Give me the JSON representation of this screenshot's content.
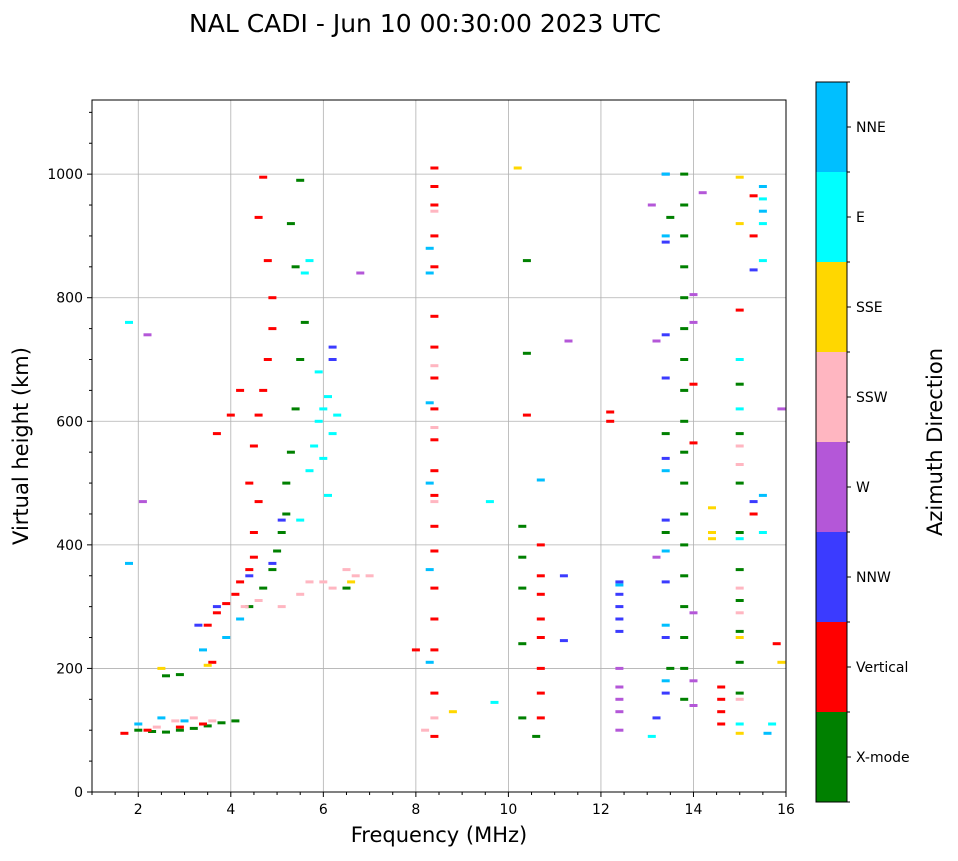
{
  "chart_data": {
    "type": "scatter",
    "title": "NAL CADI - Jun 10 00:30:00 2023 UTC",
    "xlabel": "Frequency (MHz)",
    "ylabel": "Virtual height (km)",
    "xlim": [
      1,
      16
    ],
    "ylim": [
      0,
      1120
    ],
    "xticks": [
      2,
      4,
      6,
      8,
      10,
      12,
      14,
      16
    ],
    "yticks": [
      0,
      200,
      400,
      600,
      800,
      1000
    ],
    "grid": true,
    "colorbar": {
      "label": "Azimuth Direction",
      "placement": "right",
      "categories": [
        {
          "name": "X-mode",
          "color": "#008000"
        },
        {
          "name": "Vertical",
          "color": "#ff0000"
        },
        {
          "name": "NNW",
          "color": "#3b3bff"
        },
        {
          "name": "W",
          "color": "#b457d8"
        },
        {
          "name": "SSW",
          "color": "#ffb6c1"
        },
        {
          "name": "SSE",
          "color": "#ffd700"
        },
        {
          "name": "E",
          "color": "#00ffff"
        },
        {
          "name": "NNE",
          "color": "#00bfff"
        }
      ]
    },
    "series": [
      {
        "name": "X-mode",
        "points": [
          [
            2.0,
            100
          ],
          [
            2.3,
            98
          ],
          [
            2.6,
            97
          ],
          [
            2.9,
            100
          ],
          [
            3.2,
            103
          ],
          [
            3.5,
            107
          ],
          [
            3.8,
            112
          ],
          [
            4.1,
            115
          ],
          [
            2.6,
            188
          ],
          [
            2.9,
            190
          ],
          [
            4.4,
            300
          ],
          [
            4.7,
            330
          ],
          [
            4.9,
            360
          ],
          [
            5.0,
            390
          ],
          [
            5.1,
            420
          ],
          [
            5.2,
            450
          ],
          [
            5.2,
            500
          ],
          [
            5.3,
            550
          ],
          [
            5.4,
            620
          ],
          [
            5.5,
            700
          ],
          [
            5.6,
            760
          ],
          [
            5.4,
            850
          ],
          [
            5.3,
            920
          ],
          [
            5.5,
            990
          ],
          [
            6.5,
            330
          ],
          [
            10.3,
            430
          ],
          [
            10.3,
            380
          ],
          [
            10.3,
            330
          ],
          [
            10.3,
            240
          ],
          [
            10.3,
            120
          ],
          [
            10.6,
            90
          ],
          [
            10.4,
            710
          ],
          [
            10.4,
            860
          ],
          [
            13.5,
            930
          ],
          [
            13.4,
            580
          ],
          [
            13.4,
            420
          ],
          [
            13.5,
            200
          ],
          [
            13.8,
            1000
          ],
          [
            13.8,
            950
          ],
          [
            13.8,
            900
          ],
          [
            13.8,
            850
          ],
          [
            13.8,
            800
          ],
          [
            13.8,
            750
          ],
          [
            13.8,
            700
          ],
          [
            13.8,
            650
          ],
          [
            13.8,
            600
          ],
          [
            13.8,
            550
          ],
          [
            13.8,
            500
          ],
          [
            13.8,
            450
          ],
          [
            13.8,
            400
          ],
          [
            13.8,
            350
          ],
          [
            13.8,
            300
          ],
          [
            13.8,
            250
          ],
          [
            13.8,
            200
          ],
          [
            13.8,
            150
          ],
          [
            15.0,
            660
          ],
          [
            15.0,
            580
          ],
          [
            15.0,
            500
          ],
          [
            15.0,
            420
          ],
          [
            15.0,
            360
          ],
          [
            15.0,
            310
          ],
          [
            15.0,
            260
          ],
          [
            15.0,
            210
          ],
          [
            15.0,
            160
          ]
        ]
      },
      {
        "name": "Vertical",
        "points": [
          [
            1.7,
            95
          ],
          [
            2.2,
            100
          ],
          [
            2.9,
            105
          ],
          [
            3.4,
            110
          ],
          [
            3.6,
            210
          ],
          [
            3.5,
            270
          ],
          [
            3.7,
            290
          ],
          [
            3.9,
            305
          ],
          [
            4.1,
            320
          ],
          [
            4.2,
            340
          ],
          [
            4.4,
            360
          ],
          [
            4.5,
            380
          ],
          [
            4.5,
            420
          ],
          [
            4.6,
            470
          ],
          [
            4.4,
            500
          ],
          [
            4.5,
            560
          ],
          [
            4.6,
            610
          ],
          [
            4.7,
            650
          ],
          [
            4.8,
            700
          ],
          [
            4.9,
            750
          ],
          [
            4.9,
            800
          ],
          [
            4.8,
            860
          ],
          [
            4.6,
            930
          ],
          [
            4.7,
            995
          ],
          [
            3.7,
            580
          ],
          [
            4.0,
            610
          ],
          [
            4.2,
            650
          ],
          [
            8.0,
            230
          ],
          [
            8.4,
            1010
          ],
          [
            8.4,
            980
          ],
          [
            8.4,
            950
          ],
          [
            8.4,
            900
          ],
          [
            8.4,
            850
          ],
          [
            8.4,
            770
          ],
          [
            8.4,
            720
          ],
          [
            8.4,
            670
          ],
          [
            8.4,
            620
          ],
          [
            8.4,
            570
          ],
          [
            8.4,
            520
          ],
          [
            8.4,
            480
          ],
          [
            8.4,
            430
          ],
          [
            8.4,
            390
          ],
          [
            8.4,
            330
          ],
          [
            8.4,
            280
          ],
          [
            8.4,
            230
          ],
          [
            8.4,
            160
          ],
          [
            8.4,
            90
          ],
          [
            10.7,
            120
          ],
          [
            10.7,
            160
          ],
          [
            10.7,
            200
          ],
          [
            10.7,
            250
          ],
          [
            10.7,
            280
          ],
          [
            10.7,
            320
          ],
          [
            10.7,
            350
          ],
          [
            10.7,
            400
          ],
          [
            10.4,
            610
          ],
          [
            12.2,
            600
          ],
          [
            12.2,
            615
          ],
          [
            14.0,
            660
          ],
          [
            14.0,
            565
          ],
          [
            14.6,
            110
          ],
          [
            14.6,
            130
          ],
          [
            14.6,
            150
          ],
          [
            14.6,
            170
          ],
          [
            15.0,
            780
          ],
          [
            15.3,
            450
          ],
          [
            15.3,
            900
          ],
          [
            15.3,
            965
          ],
          [
            15.8,
            240
          ]
        ]
      },
      {
        "name": "NNW",
        "points": [
          [
            3.3,
            270
          ],
          [
            3.7,
            300
          ],
          [
            4.4,
            350
          ],
          [
            4.9,
            370
          ],
          [
            5.1,
            440
          ],
          [
            6.2,
            700
          ],
          [
            6.2,
            720
          ],
          [
            12.4,
            340
          ],
          [
            12.4,
            320
          ],
          [
            12.4,
            300
          ],
          [
            12.4,
            280
          ],
          [
            12.4,
            260
          ],
          [
            13.4,
            1000
          ],
          [
            13.4,
            890
          ],
          [
            13.4,
            740
          ],
          [
            13.4,
            670
          ],
          [
            13.4,
            540
          ],
          [
            13.4,
            440
          ],
          [
            13.4,
            340
          ],
          [
            13.4,
            250
          ],
          [
            13.4,
            160
          ],
          [
            13.2,
            120
          ],
          [
            15.3,
            470
          ],
          [
            15.3,
            845
          ],
          [
            11.2,
            350
          ],
          [
            11.2,
            245
          ]
        ]
      },
      {
        "name": "W",
        "points": [
          [
            12.4,
            100
          ],
          [
            12.4,
            130
          ],
          [
            12.4,
            150
          ],
          [
            12.4,
            170
          ],
          [
            12.4,
            200
          ],
          [
            13.2,
            380
          ],
          [
            13.2,
            730
          ],
          [
            13.1,
            950
          ],
          [
            14.0,
            180
          ],
          [
            14.0,
            140
          ],
          [
            14.0,
            290
          ],
          [
            14.2,
            970
          ],
          [
            14.0,
            805
          ],
          [
            14.0,
            760
          ],
          [
            15.9,
            620
          ],
          [
            11.3,
            730
          ],
          [
            2.1,
            470
          ],
          [
            2.2,
            740
          ],
          [
            6.8,
            840
          ]
        ]
      },
      {
        "name": "SSW",
        "points": [
          [
            2.4,
            105
          ],
          [
            2.8,
            115
          ],
          [
            3.2,
            120
          ],
          [
            3.6,
            115
          ],
          [
            4.3,
            300
          ],
          [
            4.6,
            310
          ],
          [
            5.1,
            300
          ],
          [
            5.5,
            320
          ],
          [
            5.7,
            340
          ],
          [
            6.0,
            340
          ],
          [
            6.2,
            330
          ],
          [
            6.5,
            360
          ],
          [
            6.7,
            350
          ],
          [
            7.0,
            350
          ],
          [
            8.2,
            100
          ],
          [
            8.4,
            120
          ],
          [
            8.4,
            940
          ],
          [
            8.4,
            690
          ],
          [
            8.4,
            590
          ],
          [
            8.4,
            470
          ],
          [
            15.0,
            560
          ],
          [
            15.0,
            530
          ],
          [
            15.0,
            330
          ],
          [
            15.0,
            290
          ],
          [
            15.0,
            150
          ]
        ]
      },
      {
        "name": "SSE",
        "points": [
          [
            2.5,
            200
          ],
          [
            3.5,
            205
          ],
          [
            6.6,
            340
          ],
          [
            8.8,
            130
          ],
          [
            10.2,
            1010
          ],
          [
            14.4,
            460
          ],
          [
            14.4,
            420
          ],
          [
            14.4,
            410
          ],
          [
            15.0,
            995
          ],
          [
            15.0,
            920
          ],
          [
            15.0,
            250
          ],
          [
            15.0,
            95
          ],
          [
            15.9,
            210
          ]
        ]
      },
      {
        "name": "E",
        "points": [
          [
            5.5,
            440
          ],
          [
            5.7,
            520
          ],
          [
            5.8,
            560
          ],
          [
            5.9,
            600
          ],
          [
            6.0,
            620
          ],
          [
            6.1,
            640
          ],
          [
            6.3,
            610
          ],
          [
            5.9,
            680
          ],
          [
            6.2,
            580
          ],
          [
            6.0,
            540
          ],
          [
            6.1,
            480
          ],
          [
            5.6,
            840
          ],
          [
            5.7,
            860
          ],
          [
            1.8,
            760
          ],
          [
            9.6,
            470
          ],
          [
            9.7,
            145
          ],
          [
            13.1,
            90
          ],
          [
            15.0,
            700
          ],
          [
            15.0,
            620
          ],
          [
            15.0,
            410
          ],
          [
            15.0,
            110
          ],
          [
            15.5,
            960
          ],
          [
            15.5,
            920
          ],
          [
            15.5,
            860
          ],
          [
            15.5,
            420
          ],
          [
            15.7,
            110
          ]
        ]
      },
      {
        "name": "NNE",
        "points": [
          [
            2.0,
            110
          ],
          [
            2.5,
            120
          ],
          [
            3.0,
            115
          ],
          [
            3.4,
            230
          ],
          [
            3.9,
            250
          ],
          [
            4.2,
            280
          ],
          [
            8.3,
            880
          ],
          [
            8.3,
            840
          ],
          [
            8.3,
            630
          ],
          [
            8.3,
            500
          ],
          [
            8.3,
            360
          ],
          [
            8.3,
            210
          ],
          [
            10.7,
            505
          ],
          [
            12.4,
            335
          ],
          [
            13.4,
            1000
          ],
          [
            13.4,
            900
          ],
          [
            13.4,
            520
          ],
          [
            13.4,
            390
          ],
          [
            13.4,
            270
          ],
          [
            13.4,
            180
          ],
          [
            15.5,
            980
          ],
          [
            15.5,
            940
          ],
          [
            15.5,
            480
          ],
          [
            15.6,
            95
          ],
          [
            1.8,
            370
          ]
        ]
      }
    ]
  }
}
